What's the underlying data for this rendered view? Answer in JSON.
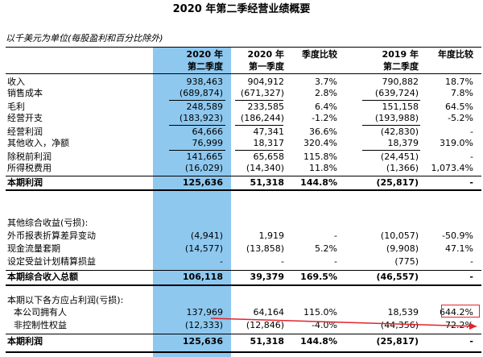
{
  "title": "2020 年第二季经营业绩概要",
  "unit_note": "以千美元为单位(每股盈利和百分比除外)",
  "headers": {
    "c1_line1": "2020 年",
    "c1_line2": "第二季度",
    "c2_line1": "2020 年",
    "c2_line2": "第一季度",
    "c3": "季度比较",
    "c4_line1": "2019 年",
    "c4_line2": "第二季度",
    "c5": "年度比较"
  },
  "rows": [
    {
      "label": "收入",
      "c1": "938,463",
      "c2": "904,912",
      "c3": "3.7%",
      "c4": "790,882",
      "c5": "18.7%"
    },
    {
      "label": "销售成本",
      "c1": "(689,874)",
      "c2": "(671,327)",
      "c3": "2.8%",
      "c4": "(639,724)",
      "c5": "7.8%"
    },
    {
      "label": "毛利",
      "c1": "248,589",
      "c2": "233,585",
      "c3": "6.4%",
      "c4": "151,158",
      "c5": "64.5%"
    },
    {
      "label": "经营开支",
      "c1": "(183,923)",
      "c2": "(186,244)",
      "c3": "-1.2%",
      "c4": "(193,988)",
      "c5": "-5.2%"
    },
    {
      "label": "经营利润",
      "c1": "64,666",
      "c2": "47,341",
      "c3": "36.6%",
      "c4": "(42,830)",
      "c5": "-"
    },
    {
      "label": "其他收入，净额",
      "c1": "76,999",
      "c2": "18,317",
      "c3": "320.4%",
      "c4": "18,379",
      "c5": "319.0%"
    },
    {
      "label": "除税前利润",
      "c1": "141,665",
      "c2": "65,658",
      "c3": "115.8%",
      "c4": "(24,451)",
      "c5": "-"
    },
    {
      "label": "所得税费用",
      "c1": "(16,029)",
      "c2": "(14,340)",
      "c3": "11.8%",
      "c4": "(1,366)",
      "c5": "1,073.4%"
    },
    {
      "label": "本期利润",
      "c1": "125,636",
      "c2": "51,318",
      "c3": "144.8%",
      "c4": "(25,817)",
      "c5": "-"
    },
    {
      "label": "其他综合收益(亏损):",
      "c1": "",
      "c2": "",
      "c3": "",
      "c4": "",
      "c5": ""
    },
    {
      "label": "外币报表折算差异变动",
      "c1": "(4,941)",
      "c2": "1,919",
      "c3": "-",
      "c4": "(10,057)",
      "c5": "-50.9%"
    },
    {
      "label": "现金流量套期",
      "c1": "(14,577)",
      "c2": "(13,858)",
      "c3": "5.2%",
      "c4": "(9,908)",
      "c5": "47.1%"
    },
    {
      "label": "设定受益计划精算损益",
      "c1": "-",
      "c2": "-",
      "c3": "-",
      "c4": "(775)",
      "c5": "-"
    },
    {
      "label": "本期综合收入总额",
      "c1": "106,118",
      "c2": "39,379",
      "c3": "169.5%",
      "c4": "(46,557)",
      "c5": "-"
    },
    {
      "label": "本期以下各方应占利润(亏损):",
      "c1": "",
      "c2": "",
      "c3": "",
      "c4": "",
      "c5": ""
    },
    {
      "label": "本公司拥有人",
      "c1": "137,969",
      "c2": "64,164",
      "c3": "115.0%",
      "c4": "18,539",
      "c5": "644.2%"
    },
    {
      "label": "非控制性权益",
      "c1": "(12,333)",
      "c2": "(12,846)",
      "c3": "-4.0%",
      "c4": "(44,356)",
      "c5": "-72.2%"
    },
    {
      "label": "本期利润",
      "c1": "125,636",
      "c2": "51,318",
      "c3": "144.8%",
      "c4": "(25,817)",
      "c5": "-"
    }
  ]
}
